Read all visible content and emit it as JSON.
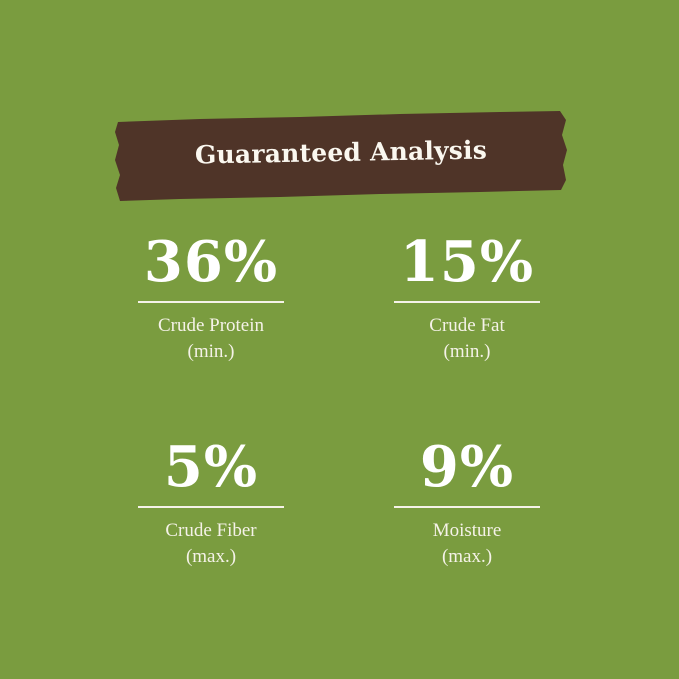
{
  "colors": {
    "background": "#7a9c3f",
    "banner": "#4f3428",
    "text": "#ffffff"
  },
  "title": "Guaranteed Analysis",
  "stats": [
    {
      "value": "36%",
      "label": "Crude Protein",
      "qualifier": "(min.)"
    },
    {
      "value": "15%",
      "label": "Crude Fat",
      "qualifier": "(min.)"
    },
    {
      "value": "5%",
      "label": "Crude Fiber",
      "qualifier": "(max.)"
    },
    {
      "value": "9%",
      "label": "Moisture",
      "qualifier": "(max.)"
    }
  ]
}
